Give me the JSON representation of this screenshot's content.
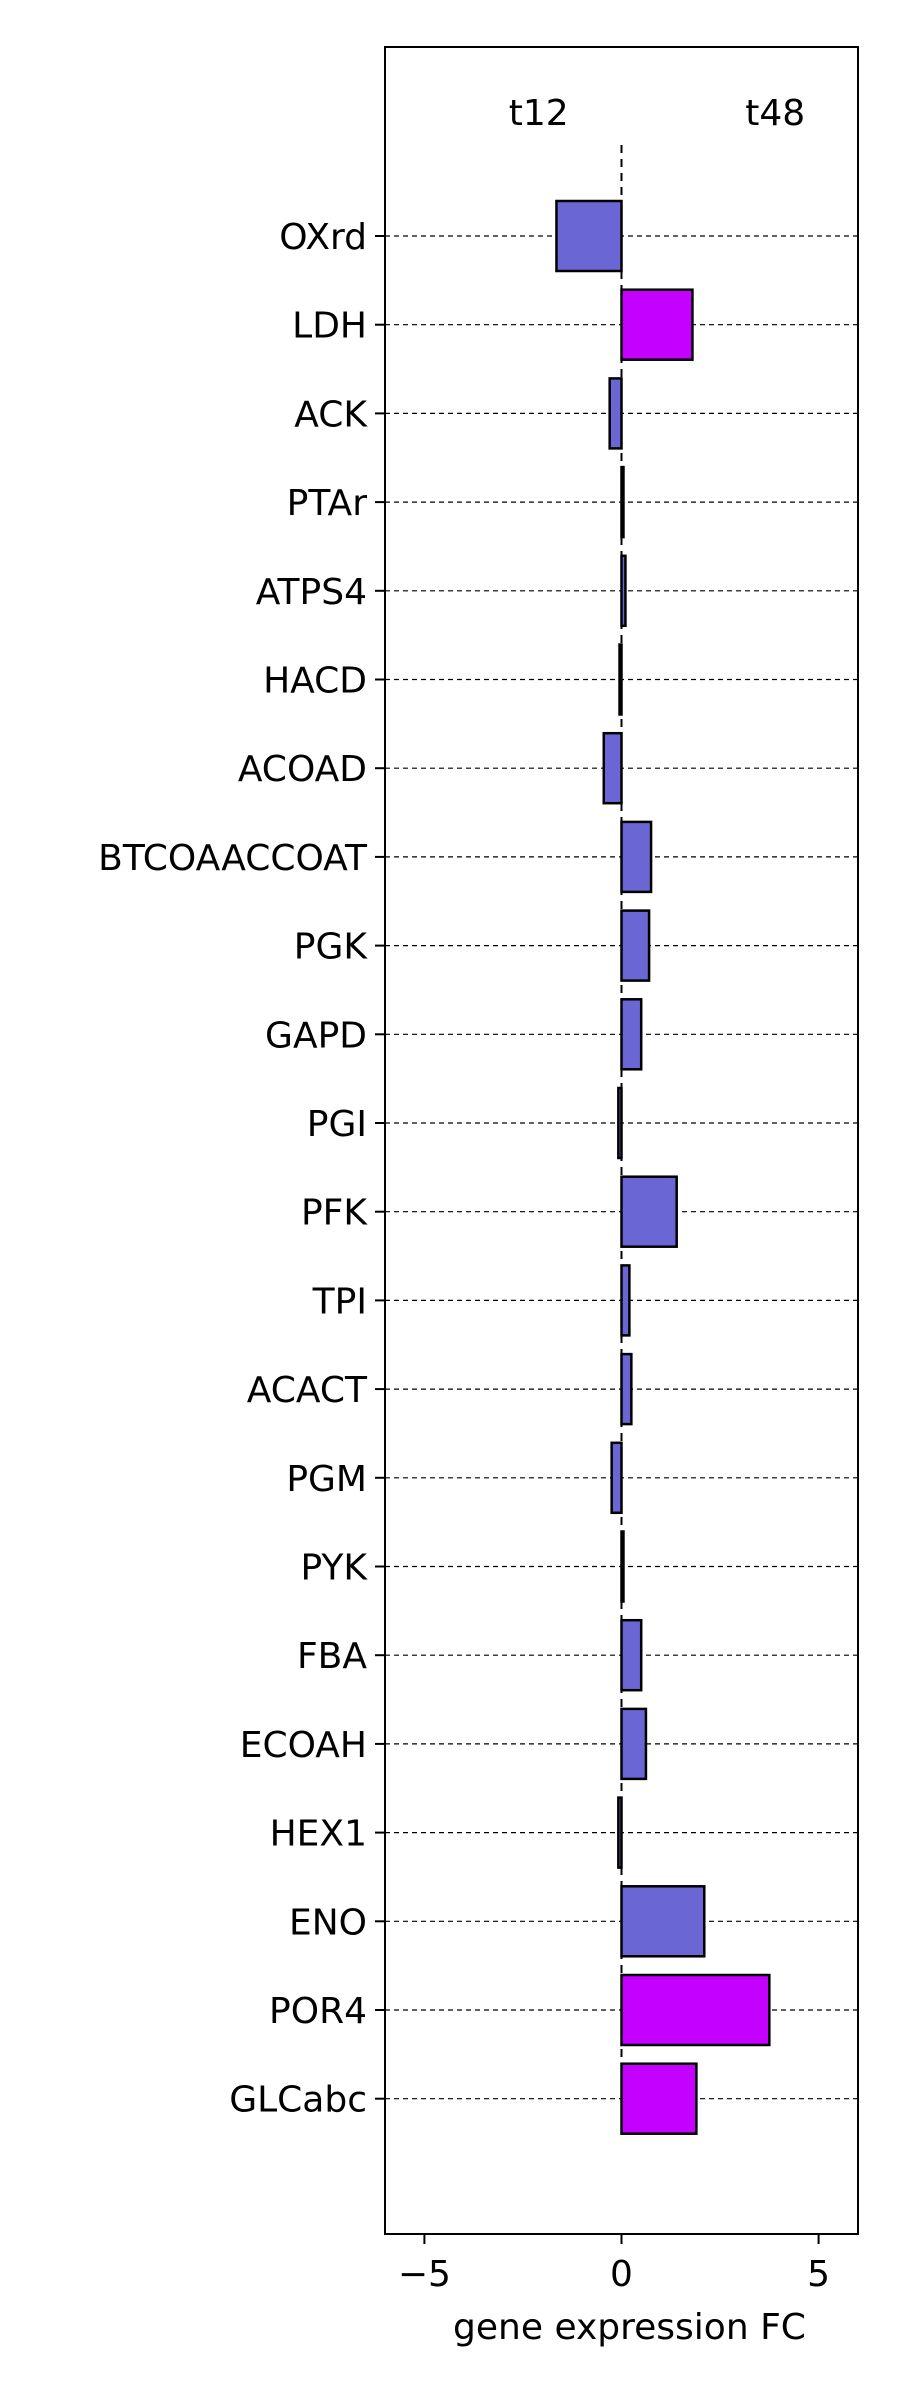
{
  "chart_data": {
    "type": "bar",
    "orientation": "horizontal",
    "categories": [
      "OXrd",
      "LDH",
      "ACK",
      "PTAr",
      "ATPS4",
      "HACD",
      "ACOAD",
      "BTCOAACCOAT",
      "PGK",
      "GAPD",
      "PGI",
      "PFK",
      "TPI",
      "ACACT",
      "PGM",
      "PYK",
      "FBA",
      "ECOAH",
      "HEX1",
      "ENO",
      "POR4",
      "GLCabc"
    ],
    "values": [
      -1.65,
      1.8,
      -0.3,
      0.05,
      0.1,
      -0.05,
      -0.45,
      0.75,
      0.7,
      0.5,
      -0.08,
      1.4,
      0.2,
      0.25,
      -0.25,
      0.05,
      0.5,
      0.62,
      -0.08,
      2.1,
      3.75,
      1.9
    ],
    "bar_colors": [
      "#6a67d4",
      "#c400ff",
      "#6a67d4",
      "#6a67d4",
      "#6a67d4",
      "#6a67d4",
      "#6a67d4",
      "#6a67d4",
      "#6a67d4",
      "#6a67d4",
      "#6a67d4",
      "#6a67d4",
      "#6a67d4",
      "#6a67d4",
      "#6a67d4",
      "#6a67d4",
      "#6a67d4",
      "#6a67d4",
      "#6a67d4",
      "#6a67d4",
      "#c400ff",
      "#c400ff"
    ],
    "edge_color": "#000000",
    "xlabel": "gene expression FC",
    "ylabel": "",
    "title": "",
    "xlim": [
      -6,
      6
    ],
    "xticks": [
      -5,
      0,
      5
    ],
    "xtick_labels": [
      "−5",
      "0",
      "5"
    ],
    "grid": "dashed horizontal lines at each category",
    "annotations": [
      {
        "text": "t12",
        "x": -2.1
      },
      {
        "text": "t48",
        "x": 3.9
      }
    ]
  }
}
